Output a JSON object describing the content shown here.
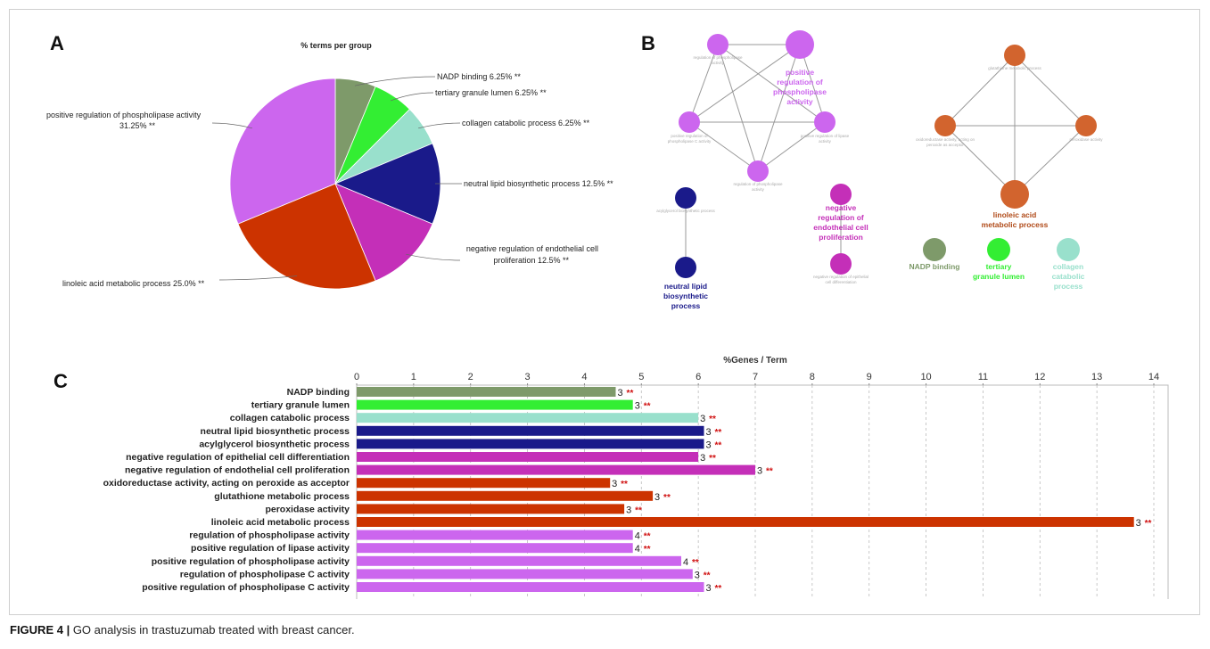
{
  "caption": {
    "label": "FIGURE 4 |",
    "text": " GO analysis in trastuzumab treated with breast cancer."
  },
  "panels": {
    "a": "A",
    "b": "B",
    "c": "C"
  },
  "colors": {
    "nadp": "#7e9a6a",
    "tertiary": "#33ee33",
    "collagen": "#99e0cc",
    "neutral": "#1a1a8a",
    "negative": "#c42fb8",
    "linoleic": "#cc3300",
    "positive": "#cc66ee",
    "networkOrange": "#d2642e",
    "asterisk": "#d01010"
  },
  "chart_data": [
    {
      "type": "pie",
      "title": "% terms per group",
      "slices": [
        {
          "label": "NADP binding 6.25% **",
          "value": 6.25,
          "color": "#7e9a6a"
        },
        {
          "label": "tertiary granule lumen 6.25% **",
          "value": 6.25,
          "color": "#33ee33"
        },
        {
          "label": "collagen catabolic process 6.25% **",
          "value": 6.25,
          "color": "#99e0cc"
        },
        {
          "label": "neutral lipid biosynthetic process 12.5% **",
          "value": 12.5,
          "color": "#1a1a8a"
        },
        {
          "label_lines": [
            "negative regulation of endothelial cell",
            "proliferation 12.5% **"
          ],
          "value": 12.5,
          "color": "#c42fb8"
        },
        {
          "label": "linoleic acid metabolic process 25.0% **",
          "value": 25.0,
          "color": "#cc3300"
        },
        {
          "label_lines": [
            "positive regulation of phospholipase activity",
            "31.25% **"
          ],
          "value": 31.25,
          "color": "#cc66ee"
        }
      ]
    },
    {
      "type": "bar",
      "orientation": "horizontal",
      "title": "%Genes / Term",
      "xlim": [
        0,
        14
      ],
      "xticks": [
        "0",
        "1",
        "2",
        "3",
        "4",
        "5",
        "6",
        "7",
        "8",
        "9",
        "10",
        "11",
        "12",
        "13",
        "14"
      ],
      "grid": true,
      "bars": [
        {
          "label": "NADP binding",
          "value": 4.55,
          "count": "3",
          "sig": "**",
          "color": "#7e9a6a"
        },
        {
          "label": "tertiary granule lumen",
          "value": 4.85,
          "count": "3",
          "sig": "**",
          "color": "#33ee33"
        },
        {
          "label": "collagen catabolic process",
          "value": 6.0,
          "count": "3",
          "sig": "**",
          "color": "#99e0cc"
        },
        {
          "label": "neutral lipid biosynthetic process",
          "value": 6.1,
          "count": "3",
          "sig": "**",
          "color": "#1a1a8a"
        },
        {
          "label": "acylglycerol biosynthetic process",
          "value": 6.1,
          "count": "3",
          "sig": "**",
          "color": "#1a1a8a"
        },
        {
          "label": "negative regulation of epithelial cell differentiation",
          "value": 6.0,
          "count": "3",
          "sig": "**",
          "color": "#c42fb8"
        },
        {
          "label": "negative regulation of endothelial cell proliferation",
          "value": 7.0,
          "count": "3",
          "sig": "**",
          "color": "#c42fb8"
        },
        {
          "label": "oxidoreductase activity, acting on peroxide as acceptor",
          "value": 4.45,
          "count": "3",
          "sig": "**",
          "color": "#cc3300"
        },
        {
          "label": "glutathione metabolic process",
          "value": 5.2,
          "count": "3",
          "sig": "**",
          "color": "#cc3300"
        },
        {
          "label": "peroxidase activity",
          "value": 4.7,
          "count": "3",
          "sig": "**",
          "color": "#cc3300"
        },
        {
          "label": "linoleic acid metabolic process",
          "value": 13.65,
          "count": "3",
          "sig": "**",
          "color": "#cc3300"
        },
        {
          "label": "regulation of phospholipase activity",
          "value": 4.85,
          "count": "4",
          "sig": "**",
          "color": "#cc66ee"
        },
        {
          "label": "positive regulation of lipase activity",
          "value": 4.85,
          "count": "4",
          "sig": "**",
          "color": "#cc66ee"
        },
        {
          "label": "positive regulation of phospholipase activity",
          "value": 5.7,
          "count": "4",
          "sig": "**",
          "color": "#cc66ee"
        },
        {
          "label": "regulation of phospholipase C activity",
          "value": 5.9,
          "count": "3",
          "sig": "**",
          "color": "#cc66ee"
        },
        {
          "label": "positive regulation of phospholipase C activity",
          "value": 6.1,
          "count": "3",
          "sig": "**",
          "color": "#cc66ee"
        }
      ]
    }
  ],
  "network": {
    "clusters": [
      {
        "color": "#cc66ee",
        "nodes": [
          {
            "label": "regulation of phospholipase activity",
            "size": "small"
          },
          {
            "label": "positive regulation of phospholipase activity",
            "size": "big",
            "bold": true
          },
          {
            "label": "positive regulation of phospholipase C activity",
            "size": "small"
          },
          {
            "label": "positive regulation of lipase activity",
            "size": "small"
          },
          {
            "label": "regulation of phospholipase activity",
            "size": "small"
          }
        ]
      },
      {
        "color": "#d2642e",
        "nodes": [
          {
            "label": "glutathione metabolic process",
            "size": "small"
          },
          {
            "label": "oxidoreductase activity, acting on peroxide as acceptor",
            "size": "small"
          },
          {
            "label": "peroxidase activity",
            "size": "small"
          },
          {
            "label": "linoleic acid metabolic process",
            "size": "big",
            "bold": true
          }
        ]
      },
      {
        "color": "#1a1a8a",
        "nodes": [
          {
            "label": "acylglycerol biosynthetic process",
            "size": "small"
          },
          {
            "label": "neutral lipid biosynthetic process",
            "size": "small",
            "bold": true
          }
        ]
      },
      {
        "color": "#c42fb8",
        "nodes": [
          {
            "label": "negative regulation of endothelial cell proliferation",
            "size": "small",
            "bold": true
          },
          {
            "label": "negative regulation of epithelial cell differentiation",
            "size": "small"
          }
        ]
      },
      {
        "color": "#7e9a6a",
        "nodes": [
          {
            "label": "NADP binding",
            "bold": true
          }
        ]
      },
      {
        "color": "#33ee33",
        "nodes": [
          {
            "label": "tertiary granule lumen",
            "bold": true
          }
        ]
      },
      {
        "color": "#99e0cc",
        "nodes": [
          {
            "label": "collagen catabolic process",
            "bold": true
          }
        ]
      }
    ]
  }
}
